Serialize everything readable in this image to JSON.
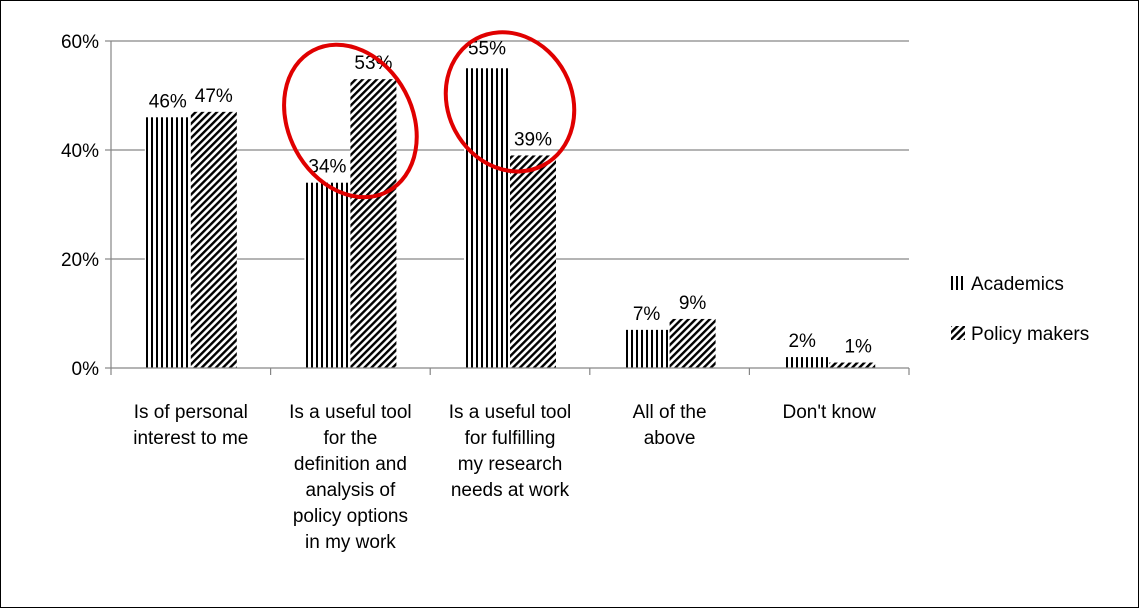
{
  "chart_data": {
    "type": "bar",
    "title": "",
    "xlabel": "",
    "ylabel": "",
    "ylim": [
      0,
      60
    ],
    "y_ticks": [
      "0%",
      "20%",
      "40%",
      "60%"
    ],
    "y_tick_values": [
      0,
      20,
      40,
      60
    ],
    "grid": "horizontal",
    "legend_position": "right",
    "categories": [
      [
        "Is of personal",
        "interest to me"
      ],
      [
        "Is a useful tool",
        "for the",
        "definition and",
        "analysis of",
        "policy options",
        "in my work"
      ],
      [
        "Is a useful tool",
        "for fulfilling",
        "my research",
        "needs at work"
      ],
      [
        "All of the",
        "above"
      ],
      [
        "Don't know"
      ]
    ],
    "series": [
      {
        "name": "Academics",
        "pattern": "vertical-lines",
        "values": [
          46,
          34,
          55,
          7,
          2
        ],
        "labels": [
          "46%",
          "34%",
          "55%",
          "7%",
          "2%"
        ]
      },
      {
        "name": "Policy makers",
        "pattern": "diagonal-lines",
        "values": [
          47,
          53,
          39,
          9,
          1
        ],
        "labels": [
          "47%",
          "53%",
          "39%",
          "9%",
          "1%"
        ]
      }
    ],
    "annotations": [
      {
        "shape": "ellipse",
        "color": "#e00000",
        "category_index": 1
      },
      {
        "shape": "ellipse",
        "color": "#e00000",
        "category_index": 2
      }
    ]
  },
  "colors": {
    "axis": "#868686",
    "gridline": "#868686",
    "bar_pattern": "#000000",
    "highlight": "#e00000"
  }
}
